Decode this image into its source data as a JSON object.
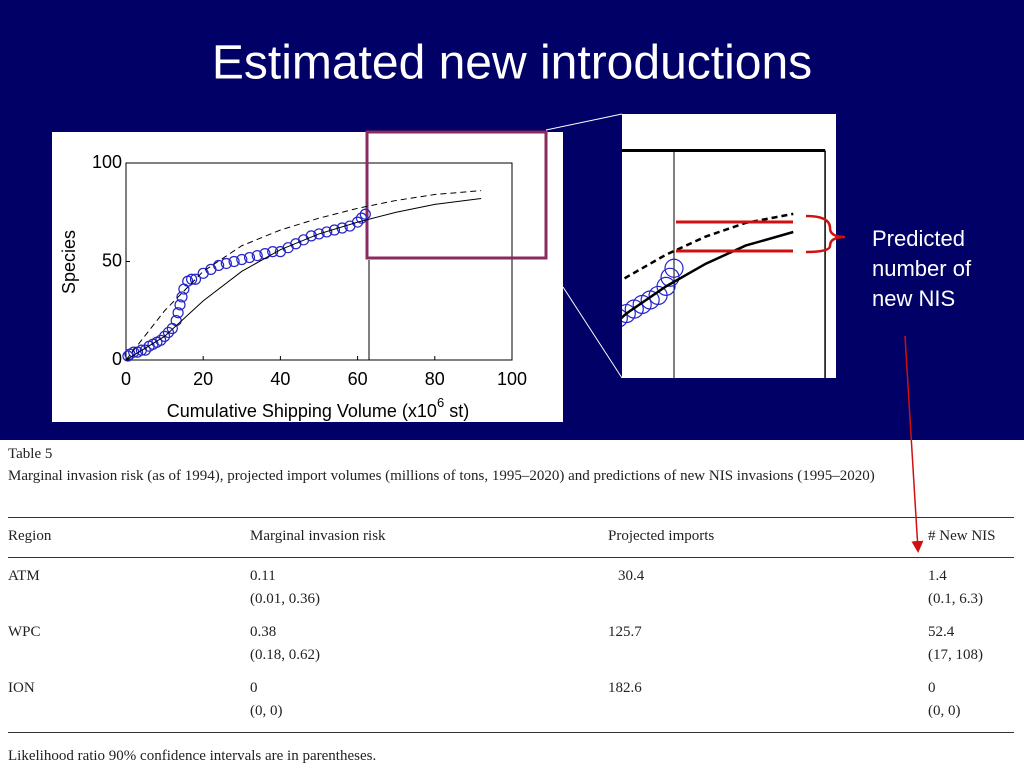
{
  "title": "Estimated new introductions",
  "chart_data": {
    "type": "scatter",
    "y_label": "Species",
    "x_label_parts": [
      "Cumulative Shipping Volume (x10",
      "6",
      "st)"
    ],
    "xlim": [
      0,
      100
    ],
    "ylim": [
      0,
      100
    ],
    "xticks": [
      0,
      20,
      40,
      60,
      80,
      100
    ],
    "yticks": [
      0,
      50,
      100
    ],
    "series": [
      {
        "color": "#2424c8",
        "marker": "circle",
        "x": [
          0.5,
          1,
          2,
          3,
          4,
          5,
          6,
          7,
          8,
          9,
          10,
          11,
          12,
          13,
          13.5,
          14,
          14.5,
          15,
          16,
          17,
          18,
          20,
          22,
          24,
          26,
          28,
          30,
          32,
          34,
          36,
          38,
          40,
          42,
          44,
          46,
          48,
          50,
          52,
          54,
          56,
          58,
          60,
          61,
          62
        ],
        "values": [
          2,
          3,
          4,
          4,
          5,
          5,
          7,
          8,
          9,
          10,
          12,
          14,
          16,
          20,
          24,
          28,
          32,
          36,
          40,
          41,
          41,
          44,
          46,
          48,
          49,
          50,
          51,
          52,
          53,
          54,
          55,
          55,
          57,
          59,
          61,
          63,
          64,
          65,
          66,
          67,
          68,
          70,
          72,
          74
        ]
      },
      {
        "color": "#000000",
        "style": "solid",
        "x": [
          0,
          10,
          20,
          30,
          40,
          50,
          60,
          70,
          80,
          92
        ],
        "values": [
          0,
          12,
          30,
          45,
          56,
          64,
          70,
          75,
          79,
          82
        ]
      },
      {
        "color": "#000000",
        "style": "dashed",
        "x": [
          0,
          10,
          20,
          30,
          40,
          50,
          60,
          70,
          80,
          92
        ],
        "values": [
          0,
          25,
          45,
          58,
          66,
          72,
          77,
          81,
          84,
          86
        ]
      }
    ]
  },
  "annotation": {
    "lines": [
      "Predicted",
      "number of",
      "new NIS"
    ]
  },
  "table": {
    "caption": "Table 5",
    "description": "Marginal invasion risk (as of 1994), projected import volumes (millions of tons, 1995–2020) and predictions of new NIS invasions (1995–2020)",
    "header": [
      "Region",
      "Marginal invasion risk",
      "Projected imports",
      "# New NIS"
    ],
    "rows": [
      [
        "ATM",
        "0.11",
        "(0.01, 0.36)",
        "30.4",
        "1.4",
        "(0.1, 6.3)"
      ],
      [
        "WPC",
        "0.38",
        "(0.18, 0.62)",
        "125.7",
        "52.4",
        "(17, 108)"
      ],
      [
        "ION",
        "0",
        "(0, 0)",
        "182.6",
        "0",
        "(0, 0)"
      ]
    ],
    "footnote": "Likelihood ratio 90% confidence intervals are in parentheses."
  }
}
